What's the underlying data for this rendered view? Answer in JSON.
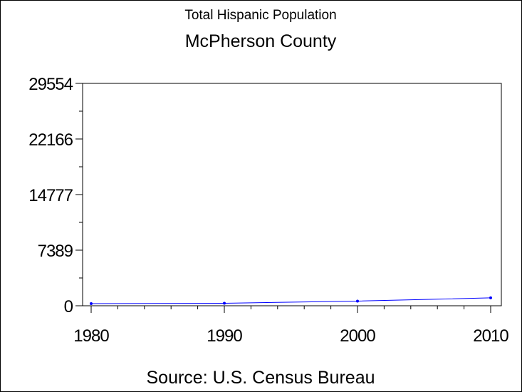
{
  "chart_data": {
    "type": "line",
    "title": "Total Hispanic Population",
    "subtitle": "McPherson County",
    "footnote": "Source: U.S. Census Bureau",
    "xlabel": "",
    "ylabel": "",
    "x": [
      1980,
      1990,
      2000,
      2010
    ],
    "series": [
      {
        "values": [
          290,
          330,
          620,
          1050
        ],
        "color": "#0000ff"
      }
    ],
    "x_ticks": [
      "1980",
      "1990",
      "2000",
      "2010"
    ],
    "y_ticks": [
      "0",
      "7389",
      "14777",
      "22166",
      "29554"
    ],
    "xlim": [
      1980,
      2010
    ],
    "ylim": [
      0,
      29554
    ],
    "grid": false
  }
}
